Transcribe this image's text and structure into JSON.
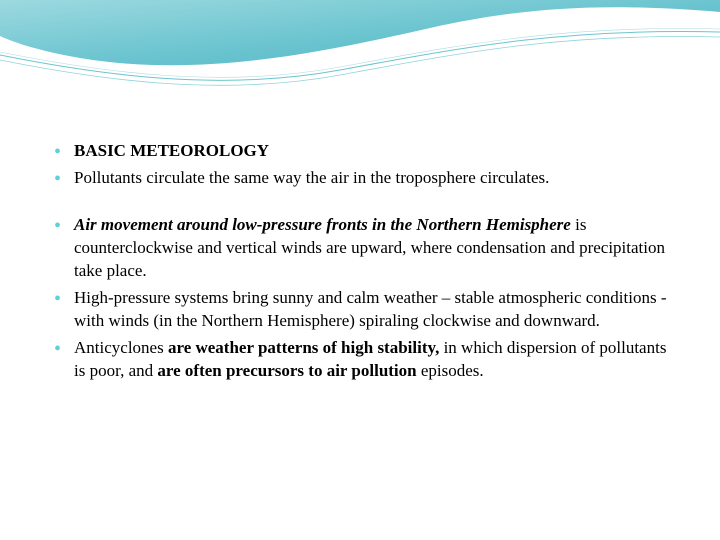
{
  "styling": {
    "bullet_color": "#5fd0d8",
    "text_color": "#000000",
    "background_color": "#ffffff",
    "font_family": "Georgia, serif",
    "body_fontsize": 17,
    "wave_gradient_start": "#7bc9d4",
    "wave_gradient_end": "#3ea8b8",
    "wave_accent": "#ffffff"
  },
  "bullets": [
    {
      "segments": [
        {
          "text": "BASIC METEOROLOGY",
          "style": "bold"
        }
      ]
    },
    {
      "segments": [
        {
          "text": "Pollutants circulate the same way the air in the troposphere circulates.",
          "style": "normal"
        }
      ]
    },
    {
      "gap": true
    },
    {
      "segments": [
        {
          "text": "Air movement around low-pressure fronts in the Northern Hemisphere",
          "style": "bold-italic"
        },
        {
          "text": " is counterclockwise and vertical winds are upward, where condensation and precipitation take place.",
          "style": "normal"
        }
      ]
    },
    {
      "segments": [
        {
          "text": " High-pressure systems bring sunny and calm weather – stable atmospheric conditions - with winds (in the Northern Hemisphere) spiraling clockwise and downward.",
          "style": "normal"
        }
      ]
    },
    {
      "segments": [
        {
          "text": "Anticyclones ",
          "style": "normal"
        },
        {
          "text": "are weather patterns of high stability,",
          "style": "bold"
        },
        {
          "text": " in which dispersion of pollutants is poor, and ",
          "style": "normal"
        },
        {
          "text": "are often precursors to air pollution",
          "style": "bold"
        },
        {
          "text": " episodes.",
          "style": "normal"
        }
      ]
    }
  ]
}
